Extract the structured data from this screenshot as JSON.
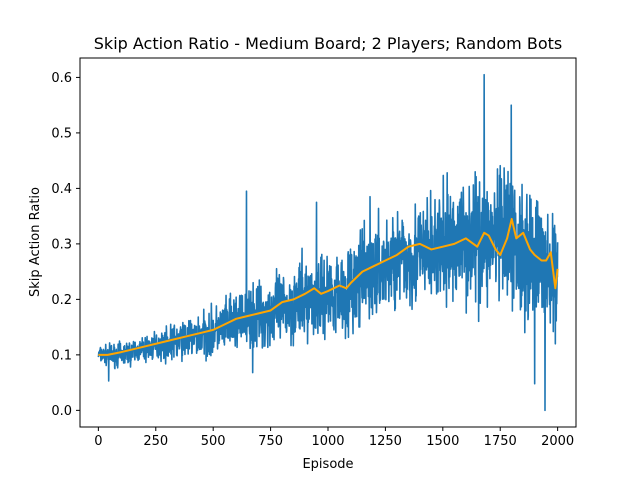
{
  "chart_data": {
    "type": "line",
    "title": "Skip Action Ratio - Medium Board; 2 Players; Random Bots",
    "xlabel": "Episode",
    "ylabel": "Skip Action Ratio",
    "xlim": [
      -80,
      2080
    ],
    "ylim": [
      -0.03,
      0.635
    ],
    "x_ticks": [
      0,
      250,
      500,
      750,
      1000,
      1250,
      1500,
      1750,
      2000
    ],
    "y_ticks": [
      0.0,
      0.1,
      0.2,
      0.3,
      0.4,
      0.5,
      0.6
    ],
    "grid": false,
    "legend": "none",
    "series": [
      {
        "role": "raw",
        "color": "#1f77b4",
        "x_start": 0,
        "x_end": 2000,
        "trend_x": [
          0,
          100,
          200,
          300,
          400,
          500,
          600,
          700,
          800,
          900,
          1000,
          1100,
          1200,
          1300,
          1400,
          1500,
          1600,
          1700,
          1800,
          1900,
          2000
        ],
        "trend_y": [
          0.1,
          0.1,
          0.11,
          0.12,
          0.13,
          0.14,
          0.16,
          0.17,
          0.18,
          0.2,
          0.21,
          0.22,
          0.25,
          0.27,
          0.28,
          0.29,
          0.31,
          0.31,
          0.3,
          0.28,
          0.23
        ],
        "spread_x": [
          0,
          100,
          200,
          300,
          400,
          500,
          600,
          700,
          800,
          900,
          1000,
          1100,
          1200,
          1300,
          1400,
          1500,
          1600,
          1700,
          1800,
          1900,
          2000
        ],
        "spread_y": [
          0.01,
          0.015,
          0.015,
          0.02,
          0.025,
          0.03,
          0.035,
          0.04,
          0.045,
          0.05,
          0.05,
          0.055,
          0.06,
          0.06,
          0.065,
          0.07,
          0.075,
          0.08,
          0.085,
          0.08,
          0.07
        ],
        "peaks": [
          {
            "x": 45,
            "y": 0.053
          },
          {
            "x": 645,
            "y": 0.395
          },
          {
            "x": 672,
            "y": 0.068
          },
          {
            "x": 950,
            "y": 0.375
          },
          {
            "x": 1183,
            "y": 0.385
          },
          {
            "x": 1680,
            "y": 0.605
          },
          {
            "x": 1798,
            "y": 0.55
          },
          {
            "x": 1900,
            "y": 0.048
          },
          {
            "x": 1945,
            "y": 0.0
          },
          {
            "x": 1990,
            "y": 0.12
          }
        ]
      },
      {
        "role": "moving-average",
        "color": "#ffa500",
        "x": [
          0,
          40,
          100,
          200,
          300,
          400,
          450,
          500,
          550,
          600,
          650,
          700,
          750,
          800,
          850,
          900,
          940,
          970,
          1000,
          1050,
          1080,
          1100,
          1150,
          1200,
          1250,
          1300,
          1350,
          1400,
          1450,
          1500,
          1550,
          1600,
          1650,
          1680,
          1700,
          1730,
          1750,
          1780,
          1800,
          1820,
          1850,
          1880,
          1900,
          1930,
          1950,
          1970,
          1990,
          2000
        ],
        "y": [
          0.1,
          0.1,
          0.105,
          0.115,
          0.125,
          0.135,
          0.14,
          0.145,
          0.155,
          0.165,
          0.17,
          0.175,
          0.18,
          0.195,
          0.2,
          0.21,
          0.22,
          0.21,
          0.215,
          0.225,
          0.22,
          0.23,
          0.25,
          0.26,
          0.27,
          0.28,
          0.295,
          0.3,
          0.29,
          0.295,
          0.3,
          0.31,
          0.295,
          0.32,
          0.315,
          0.29,
          0.28,
          0.31,
          0.345,
          0.31,
          0.32,
          0.29,
          0.28,
          0.27,
          0.27,
          0.285,
          0.22,
          0.255
        ]
      }
    ]
  }
}
